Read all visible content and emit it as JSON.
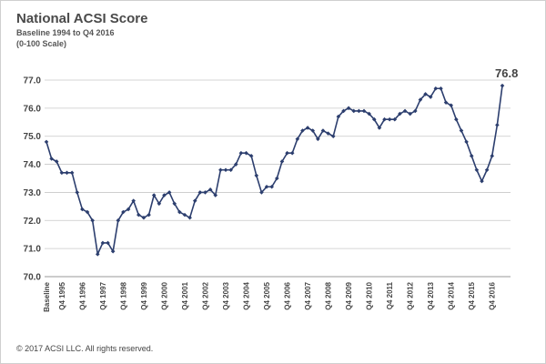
{
  "header": {
    "title": "National ACSI Score",
    "subtitle_line1": "Baseline 1994 to Q4 2016",
    "subtitle_line2": "(0-100 Scale)"
  },
  "footer": {
    "copyright": "© 2017 ACSI LLC. All rights reserved."
  },
  "colors": {
    "line": "#2c3e6e",
    "grid": "#c8c8c8",
    "text": "#444444"
  },
  "chart_data": {
    "type": "line",
    "title": "National ACSI Score",
    "subtitle": "Baseline 1994 to Q4 2016 (0-100 Scale)",
    "ylim": [
      70.0,
      77.0
    ],
    "y_ticks": [
      "70.0",
      "71.0",
      "72.0",
      "73.0",
      "74.0",
      "75.0",
      "76.0",
      "77.0"
    ],
    "x_tick_labels": [
      "Baseline",
      "Q4 1995",
      "Q4 1996",
      "Q4 1997",
      "Q4 1998",
      "Q4 1999",
      "Q4 2000",
      "Q4 2001",
      "Q4 2002",
      "Q4 2003",
      "Q4 2004",
      "Q4 2005",
      "Q4 2006",
      "Q4 2007",
      "Q4 2008",
      "Q4 2009",
      "Q4 2010",
      "Q4 2011",
      "Q4 2012",
      "Q4 2013",
      "Q4 2014",
      "Q4 2015",
      "Q4 2016"
    ],
    "grid": true,
    "end_label": "76.8",
    "values": [
      74.8,
      74.2,
      74.1,
      73.7,
      73.7,
      73.7,
      73.0,
      72.4,
      72.3,
      72.0,
      70.8,
      71.2,
      71.2,
      70.9,
      72.0,
      72.3,
      72.4,
      72.7,
      72.2,
      72.1,
      72.2,
      72.9,
      72.6,
      72.9,
      73.0,
      72.6,
      72.3,
      72.2,
      72.1,
      72.7,
      73.0,
      73.0,
      73.1,
      72.9,
      73.8,
      73.8,
      73.8,
      74.0,
      74.4,
      74.4,
      74.3,
      73.6,
      73.0,
      73.2,
      73.2,
      73.5,
      74.1,
      74.4,
      74.4,
      74.9,
      75.2,
      75.3,
      75.2,
      74.9,
      75.2,
      75.1,
      75.0,
      75.7,
      75.9,
      76.0,
      75.9,
      75.9,
      75.9,
      75.8,
      75.6,
      75.3,
      75.6,
      75.6,
      75.6,
      75.8,
      75.9,
      75.8,
      75.9,
      76.3,
      76.5,
      76.4,
      76.7,
      76.7,
      76.2,
      76.1,
      75.6,
      75.2,
      74.8,
      74.3,
      73.8,
      73.4,
      73.8,
      74.3,
      75.4,
      76.8
    ]
  }
}
